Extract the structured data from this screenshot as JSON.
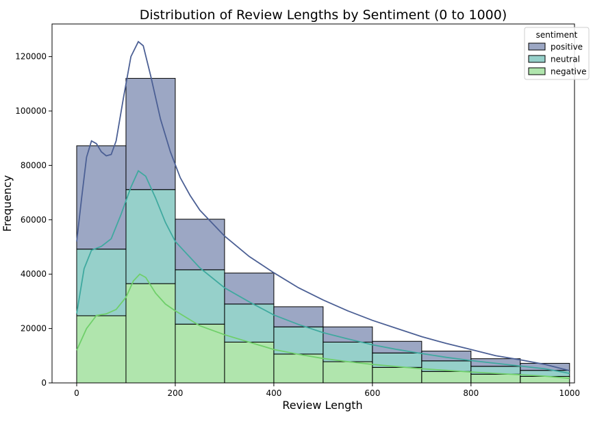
{
  "chart_data": {
    "type": "histogram",
    "stacked": true,
    "title": "Distribution of Review Lengths by Sentiment (0 to 1000)",
    "xlabel": "Review Length",
    "ylabel": "Frequency",
    "xlim": [
      -50,
      1010
    ],
    "ylim": [
      0,
      132000
    ],
    "xticks": [
      0,
      200,
      400,
      600,
      800,
      1000
    ],
    "yticks": [
      0,
      20000,
      40000,
      60000,
      80000,
      100000,
      120000
    ],
    "bin_edges": [
      0,
      100,
      200,
      300,
      400,
      500,
      600,
      700,
      800,
      900,
      1000
    ],
    "grid": false,
    "legend": {
      "title": "sentiment",
      "position": "top-right"
    },
    "series": [
      {
        "name": "negative",
        "color": "#6fcf6a",
        "values": [
          24700,
          36500,
          21600,
          15000,
          10600,
          7800,
          5700,
          4200,
          3200,
          2400
        ],
        "kde": [
          [
            0,
            12000
          ],
          [
            20,
            20000
          ],
          [
            40,
            24800
          ],
          [
            60,
            25400
          ],
          [
            80,
            27000
          ],
          [
            100,
            31500
          ],
          [
            115,
            37500
          ],
          [
            128,
            40000
          ],
          [
            140,
            38800
          ],
          [
            160,
            33000
          ],
          [
            180,
            29000
          ],
          [
            200,
            26500
          ],
          [
            250,
            21000
          ],
          [
            300,
            17700
          ],
          [
            350,
            15000
          ],
          [
            400,
            12300
          ],
          [
            450,
            10500
          ],
          [
            500,
            9000
          ],
          [
            550,
            7800
          ],
          [
            600,
            6800
          ],
          [
            650,
            6000
          ],
          [
            700,
            5200
          ],
          [
            750,
            4600
          ],
          [
            800,
            4000
          ],
          [
            850,
            3500
          ],
          [
            900,
            3000
          ],
          [
            950,
            2500
          ],
          [
            1000,
            1700
          ]
        ]
      },
      {
        "name": "neutral",
        "color": "#3fa99f",
        "values": [
          24500,
          34600,
          20000,
          14000,
          10000,
          7200,
          5300,
          3900,
          2900,
          2200
        ],
        "kde": [
          [
            0,
            25500
          ],
          [
            15,
            42000
          ],
          [
            30,
            48800
          ],
          [
            50,
            50200
          ],
          [
            70,
            53000
          ],
          [
            90,
            62000
          ],
          [
            110,
            72000
          ],
          [
            125,
            78000
          ],
          [
            140,
            76000
          ],
          [
            160,
            68000
          ],
          [
            180,
            59000
          ],
          [
            200,
            52000
          ],
          [
            250,
            42300
          ],
          [
            300,
            35000
          ],
          [
            350,
            29800
          ],
          [
            400,
            25000
          ],
          [
            450,
            21500
          ],
          [
            500,
            18500
          ],
          [
            550,
            16200
          ],
          [
            600,
            14000
          ],
          [
            650,
            12300
          ],
          [
            700,
            10800
          ],
          [
            750,
            9400
          ],
          [
            800,
            8200
          ],
          [
            850,
            7200
          ],
          [
            900,
            6200
          ],
          [
            950,
            5200
          ],
          [
            1000,
            3500
          ]
        ]
      },
      {
        "name": "positive",
        "color": "#4b5f94",
        "values": [
          38000,
          40900,
          18600,
          11400,
          7400,
          5600,
          4300,
          3600,
          2800,
          2600
        ],
        "kde": [
          [
            0,
            52000
          ],
          [
            10,
            68000
          ],
          [
            20,
            83000
          ],
          [
            30,
            89000
          ],
          [
            40,
            88000
          ],
          [
            50,
            85000
          ],
          [
            60,
            83500
          ],
          [
            70,
            84000
          ],
          [
            80,
            89000
          ],
          [
            95,
            105000
          ],
          [
            110,
            120000
          ],
          [
            125,
            125500
          ],
          [
            135,
            124000
          ],
          [
            150,
            113000
          ],
          [
            170,
            97000
          ],
          [
            190,
            85000
          ],
          [
            210,
            75500
          ],
          [
            230,
            69000
          ],
          [
            250,
            63500
          ],
          [
            300,
            54000
          ],
          [
            350,
            46500
          ],
          [
            400,
            40500
          ],
          [
            450,
            35000
          ],
          [
            500,
            30500
          ],
          [
            550,
            26500
          ],
          [
            600,
            23000
          ],
          [
            650,
            20000
          ],
          [
            700,
            17000
          ],
          [
            750,
            14500
          ],
          [
            800,
            12300
          ],
          [
            850,
            10000
          ],
          [
            900,
            8500
          ],
          [
            950,
            6800
          ],
          [
            1000,
            4500
          ]
        ]
      }
    ]
  }
}
